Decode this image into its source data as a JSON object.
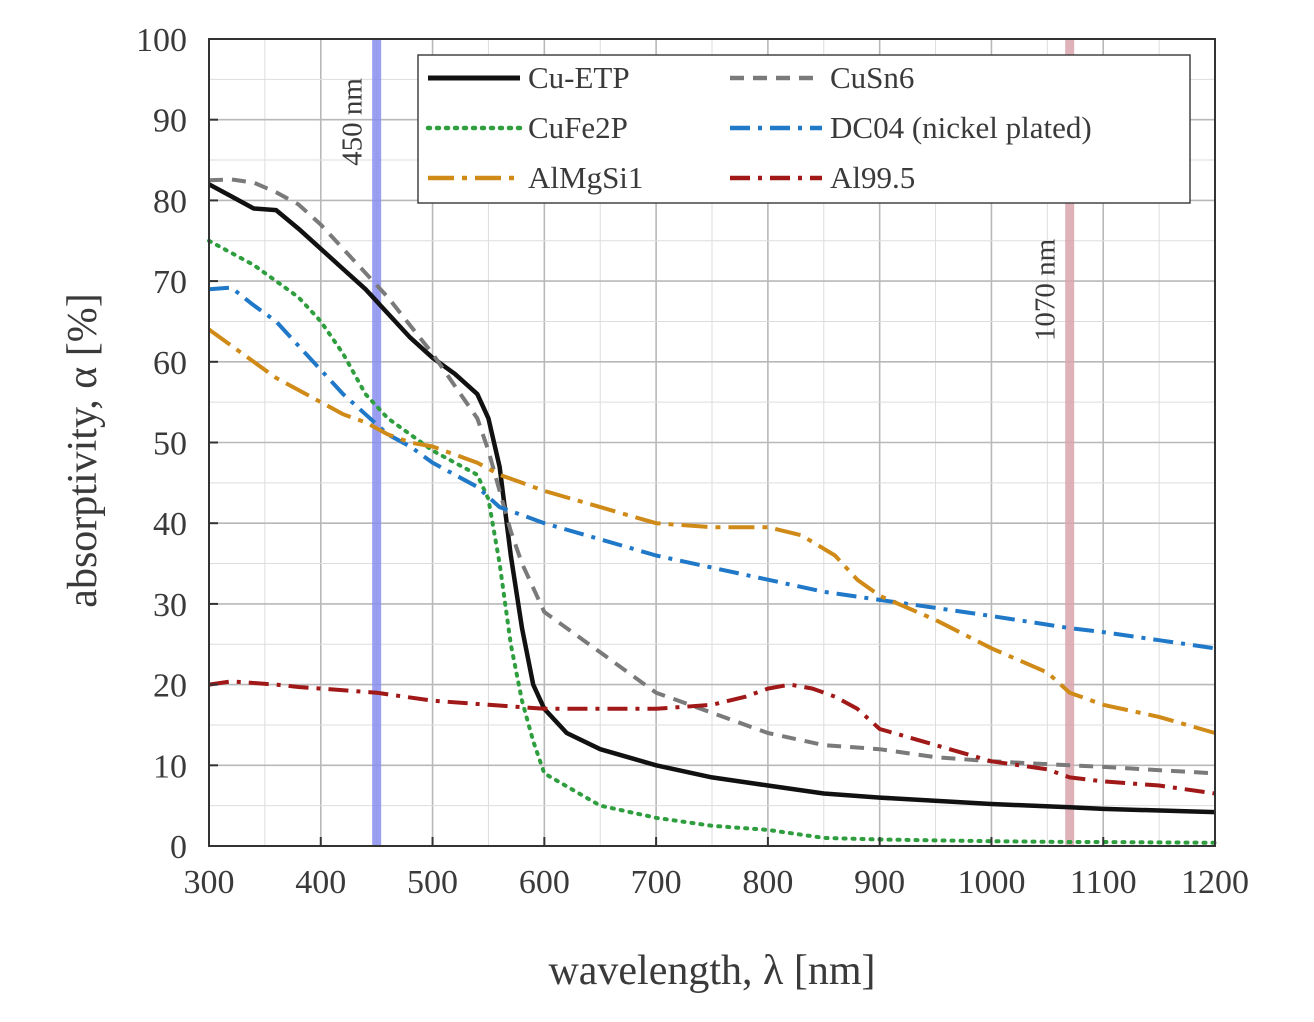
{
  "chart_data": {
    "type": "line",
    "xlabel": "wavelength, λ [nm]",
    "ylabel": "absorptivity, α [%]",
    "xlim": [
      300,
      1200
    ],
    "ylim": [
      0,
      100
    ],
    "xticks": [
      300,
      400,
      500,
      600,
      700,
      800,
      900,
      1000,
      1100,
      1200
    ],
    "yticks": [
      0,
      10,
      20,
      30,
      40,
      50,
      60,
      70,
      80,
      90,
      100
    ],
    "grid": true,
    "legend_position": "top",
    "vertical_markers": [
      {
        "x": 450,
        "label": "450 nm",
        "color": "#8a8ef0"
      },
      {
        "x": 1070,
        "label": "1070 nm",
        "color": "#d9a3ab"
      }
    ],
    "series": [
      {
        "name": "Cu-ETP",
        "color": "#111111",
        "dash": "solid",
        "x": [
          300,
          320,
          340,
          360,
          380,
          400,
          420,
          440,
          460,
          480,
          500,
          520,
          540,
          550,
          560,
          570,
          580,
          590,
          600,
          620,
          650,
          700,
          750,
          800,
          850,
          900,
          1000,
          1070,
          1100,
          1200
        ],
        "y": [
          82,
          80.5,
          79,
          78.8,
          76.5,
          74,
          71.5,
          69,
          66,
          63,
          60.5,
          58.5,
          56,
          53,
          47,
          36,
          27,
          20,
          17,
          14,
          12,
          10,
          8.5,
          7.5,
          6.5,
          6,
          5.2,
          4.8,
          4.6,
          4.2
        ]
      },
      {
        "name": "CuSn6",
        "color": "#7a7a7a",
        "dash": "dash",
        "x": [
          300,
          320,
          340,
          360,
          380,
          400,
          420,
          440,
          460,
          480,
          500,
          520,
          540,
          550,
          560,
          570,
          580,
          590,
          600,
          650,
          700,
          750,
          800,
          850,
          900,
          950,
          1000,
          1070,
          1100,
          1200
        ],
        "y": [
          82.5,
          82.6,
          82.2,
          81,
          79.5,
          77,
          74,
          71,
          68,
          64.5,
          61,
          57,
          53,
          49,
          44,
          39,
          35,
          32,
          29,
          24,
          19,
          16.5,
          14,
          12.5,
          12,
          11,
          10.5,
          10,
          9.8,
          9
        ]
      },
      {
        "name": "CuFe2P",
        "color": "#2e9e3e",
        "dash": "dot",
        "x": [
          300,
          340,
          380,
          400,
          420,
          440,
          460,
          480,
          500,
          520,
          540,
          550,
          560,
          570,
          580,
          590,
          600,
          650,
          700,
          750,
          800,
          850,
          900,
          1000,
          1070,
          1100,
          1200
        ],
        "y": [
          75,
          72,
          68,
          65,
          61,
          56,
          53,
          51,
          49,
          47.5,
          46,
          43,
          35,
          25,
          18,
          13,
          9,
          5,
          3.5,
          2.5,
          2,
          1,
          0.8,
          0.6,
          0.5,
          0.5,
          0.4
        ]
      },
      {
        "name": "DC04 (nickel plated)",
        "color": "#1f78c8",
        "dash": "dashdot",
        "x": [
          300,
          320,
          340,
          360,
          380,
          400,
          420,
          440,
          460,
          480,
          500,
          520,
          540,
          560,
          580,
          600,
          650,
          700,
          750,
          800,
          850,
          900,
          950,
          1000,
          1070,
          1100,
          1150,
          1200
        ],
        "y": [
          69,
          69.2,
          67,
          65,
          62,
          59,
          56,
          53.5,
          51,
          49.5,
          47.5,
          46,
          44.5,
          42,
          41,
          40,
          38,
          36,
          34.5,
          33,
          31.5,
          30.5,
          29.5,
          28.5,
          27,
          26.5,
          25.5,
          24.5
        ]
      },
      {
        "name": "AlMgSi1",
        "color": "#d08a17",
        "dash": "longdashdot",
        "x": [
          300,
          320,
          340,
          360,
          380,
          400,
          420,
          440,
          460,
          480,
          500,
          520,
          540,
          560,
          580,
          600,
          650,
          700,
          750,
          800,
          830,
          860,
          880,
          900,
          950,
          1000,
          1050,
          1070,
          1100,
          1150,
          1200
        ],
        "y": [
          64,
          62,
          60,
          58,
          56.5,
          55,
          53.5,
          52.5,
          51,
          50,
          49.5,
          48.5,
          47.5,
          46,
          45,
          44,
          42,
          40,
          39.5,
          39.5,
          38.5,
          36,
          33,
          31,
          28,
          24.5,
          21.5,
          19,
          17.5,
          16,
          14
        ]
      },
      {
        "name": "Al99.5",
        "color": "#a01818",
        "dash": "dashdot",
        "x": [
          300,
          320,
          340,
          360,
          380,
          400,
          450,
          500,
          550,
          600,
          650,
          700,
          750,
          780,
          800,
          820,
          840,
          860,
          880,
          900,
          950,
          1000,
          1050,
          1070,
          1100,
          1150,
          1200
        ],
        "y": [
          20,
          20.4,
          20.2,
          20,
          19.7,
          19.5,
          19,
          18,
          17.5,
          17,
          17,
          17,
          17.5,
          18.5,
          19.5,
          20,
          19.5,
          18.5,
          17,
          14.5,
          12.5,
          10.5,
          9.5,
          8.5,
          8,
          7.5,
          6.5
        ]
      }
    ]
  }
}
